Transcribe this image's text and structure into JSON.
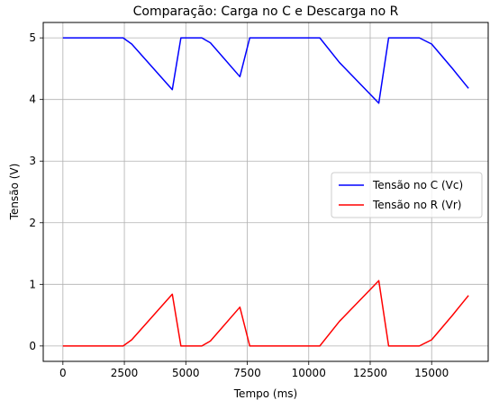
{
  "chart_data": {
    "type": "line",
    "title": "Comparação: Carga no C e Descarga no R",
    "xlabel": "Tempo (ms)",
    "ylabel": "Tensão (V)",
    "xlim": [
      -800,
      17300
    ],
    "ylim": [
      -0.25,
      5.25
    ],
    "xticks": [
      0,
      2500,
      5000,
      7500,
      10000,
      12500,
      15000
    ],
    "yticks": [
      0,
      1,
      2,
      3,
      4,
      5
    ],
    "grid": true,
    "legend_position": "center-right",
    "series": [
      {
        "name": "Tensão no C (Vc)",
        "color": "#0000ff",
        "x": [
          0,
          2450,
          2800,
          4450,
          4800,
          5650,
          6000,
          7200,
          7600,
          10450,
          11250,
          12850,
          13250,
          14500,
          15000,
          15850,
          16500
        ],
        "y": [
          5.0,
          5.0,
          4.9,
          4.16,
          5.0,
          5.0,
          4.92,
          4.37,
          5.0,
          5.0,
          4.6,
          3.94,
          5.0,
          5.0,
          4.9,
          4.5,
          4.18
        ]
      },
      {
        "name": "Tensão no R (Vr)",
        "color": "#ff0000",
        "x": [
          0,
          2450,
          2800,
          4450,
          4800,
          5650,
          6000,
          7200,
          7600,
          10450,
          11250,
          12850,
          13250,
          14500,
          15000,
          15850,
          16500
        ],
        "y": [
          0.0,
          0.0,
          0.1,
          0.84,
          0.0,
          0.0,
          0.08,
          0.63,
          0.0,
          0.0,
          0.4,
          1.06,
          0.0,
          0.0,
          0.1,
          0.5,
          0.82
        ]
      }
    ]
  }
}
